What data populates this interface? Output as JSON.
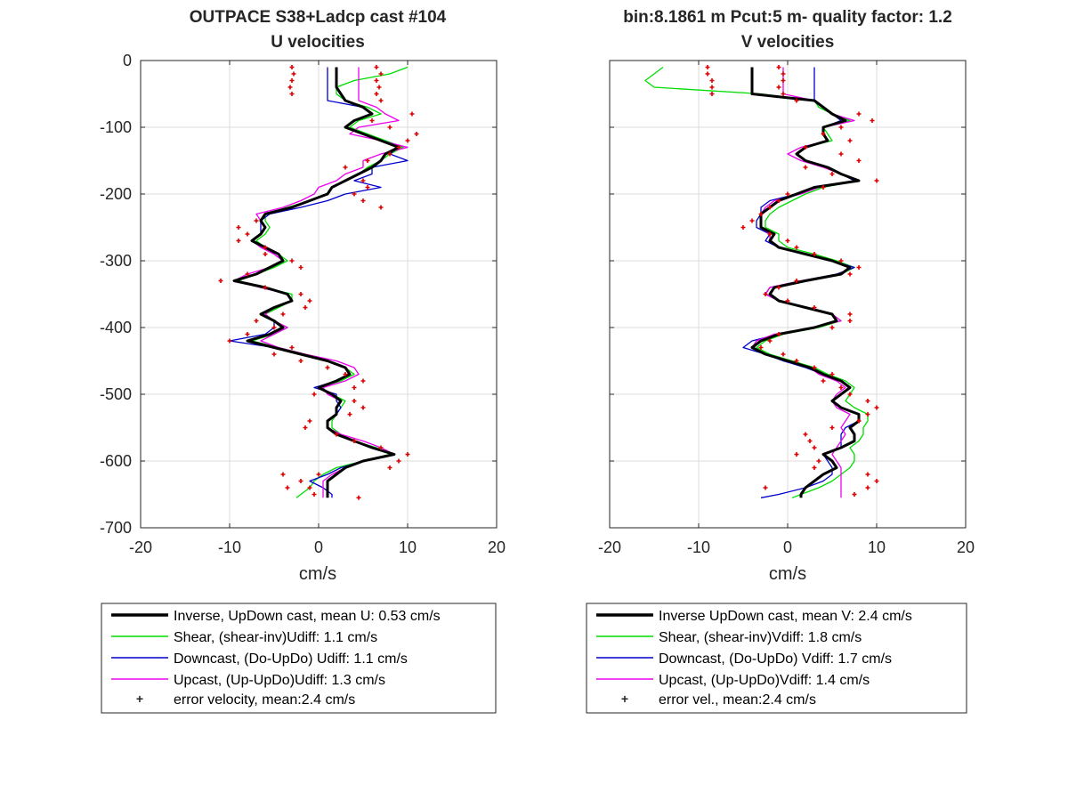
{
  "figure": {
    "panels": [
      {
        "title_line1": "OUTPACE S38+Ladcp cast #104",
        "title_line2": "U velocities",
        "xlabel": "cm/s",
        "legend": [
          "Inverse, UpDown cast, mean U:  0.53 cm/s",
          "Shear, (shear-inv)Udiff:  1.1 cm/s",
          "Downcast, (Do-UpDo) Udiff:  1.1 cm/s",
          "Upcast, (Up-UpDo)Udiff:  1.3 cm/s",
          "error velocity, mean:2.4 cm/s"
        ]
      },
      {
        "title_line1": "bin:8.1861 m  Pcut:5 m- quality factor:  1.2",
        "title_line2": "V velocities",
        "xlabel": "cm/s",
        "legend": [
          "Inverse UpDown cast, mean V:  2.4 cm/s",
          "Shear, (shear-inv)Vdiff:  1.8 cm/s",
          "Downcast, (Do-UpDo) Vdiff:  1.7 cm/s",
          "Upcast, (Up-UpDo)Vdiff:  1.4 cm/s",
          "error vel., mean:2.4 cm/s"
        ]
      }
    ]
  },
  "colors": {
    "inverse": "#000000",
    "shear": "#00dd00",
    "downcast": "#0000cc",
    "upcast": "#ee00ee",
    "error": "#dd0000",
    "grid": "#dcdcdc",
    "axis": "#262626"
  },
  "chart_data": [
    {
      "type": "line",
      "orientation": "profile",
      "xlim": [
        -20,
        20
      ],
      "ylim": [
        -700,
        0
      ],
      "xticks": [
        "-20",
        "-10",
        "0",
        "10",
        "20"
      ],
      "yticks": [
        "0",
        "-100",
        "-200",
        "-300",
        "-400",
        "-500",
        "-600",
        "-700"
      ],
      "xlabel": "cm/s",
      "grid": true,
      "legend_position": "below",
      "depth": [
        -10,
        -20,
        -30,
        -40,
        -50,
        -60,
        -70,
        -80,
        -90,
        -100,
        -110,
        -120,
        -130,
        -140,
        -150,
        -160,
        -170,
        -180,
        -190,
        -200,
        -210,
        -220,
        -230,
        -240,
        -250,
        -260,
        -270,
        -280,
        -290,
        -300,
        -310,
        -320,
        -330,
        -340,
        -350,
        -360,
        -370,
        -380,
        -390,
        -400,
        -410,
        -420,
        -430,
        -440,
        -450,
        -460,
        -470,
        -480,
        -490,
        -500,
        -510,
        -520,
        -530,
        -540,
        -550,
        -560,
        -570,
        -580,
        -590,
        -600,
        -610,
        -620,
        -630,
        -640,
        -650,
        -655
      ],
      "series": [
        {
          "name": "Inverse, UpDown cast, mean U:  0.53 cm/s",
          "key": "inverse",
          "values": [
            2,
            2,
            2,
            2,
            2.5,
            3,
            5,
            6,
            4,
            3,
            5,
            7,
            9,
            7.5,
            7,
            6,
            4.5,
            3,
            1.5,
            1,
            -1,
            -3,
            -6,
            -6.5,
            -6,
            -6.5,
            -7.5,
            -6,
            -4.5,
            -4,
            -5.5,
            -7,
            -9.5,
            -6,
            -3.5,
            -3,
            -5,
            -6.5,
            -5,
            -4,
            -5.5,
            -8,
            -5,
            -2,
            1,
            3,
            3.5,
            2,
            0,
            1.5,
            2.5,
            2,
            2,
            1,
            1,
            2,
            4,
            6,
            8.5,
            5,
            3,
            2,
            1,
            1,
            1,
            1
          ]
        },
        {
          "name": "Shear, (shear-inv)Udiff:  1.1 cm/s",
          "key": "shear",
          "values": [
            10,
            8,
            4,
            2,
            2,
            3,
            5.5,
            7,
            4.5,
            3.5,
            5.5,
            7.5,
            9.5,
            8,
            7,
            5.5,
            4.5,
            3,
            1.5,
            1,
            -1,
            -3.5,
            -6,
            -6,
            -5.5,
            -6,
            -7,
            -6,
            -4.5,
            -3.5,
            -5,
            -7,
            -9,
            -6,
            -3,
            -3,
            -4.5,
            -6,
            -5,
            -3.5,
            -5,
            -7.5,
            -4.5,
            -1.5,
            1,
            3,
            4,
            2.5,
            0,
            1.5,
            3,
            2.5,
            2,
            1.5,
            1.5,
            2.5,
            4,
            6.5,
            8,
            5,
            2,
            0.5,
            -0.5,
            -1,
            -2,
            -2.5
          ]
        },
        {
          "name": "Downcast, (Do-UpDo) Udiff:  1.1 cm/s",
          "key": "downcast",
          "values": [
            1,
            1,
            1,
            1,
            1,
            1,
            5,
            6,
            4,
            3,
            5,
            7,
            9,
            8,
            10,
            6,
            6,
            4,
            7,
            3,
            1,
            -2,
            -5.5,
            -6.5,
            -6.5,
            -6.5,
            -7.5,
            -6,
            -5,
            -4,
            -5.5,
            -7,
            -9.5,
            -6.5,
            -3.5,
            -3,
            -5,
            -6.5,
            -5,
            -5,
            -6,
            -10,
            -5,
            -2,
            1,
            3,
            3.5,
            2,
            -0.5,
            2,
            2,
            2.5,
            2,
            1,
            1,
            2,
            4,
            6,
            8.5,
            5,
            2.5,
            1,
            -1,
            0.5,
            1.5,
            1.5
          ]
        },
        {
          "name": "Upcast, (Up-UpDo)Udiff:  1.3 cm/s",
          "key": "upcast",
          "values": [
            4.5,
            4.5,
            4.5,
            4.5,
            4.5,
            4.5,
            6.5,
            7.5,
            9,
            4.5,
            3.5,
            7,
            10,
            7,
            5,
            5,
            3,
            2,
            0,
            -0.5,
            -2,
            -4,
            -7,
            -6.5,
            -6,
            -6.5,
            -7.5,
            -6.5,
            -5,
            -4,
            -5.5,
            -8,
            -9.5,
            -6.5,
            -3.5,
            -3,
            -5,
            -6,
            -5,
            -3.5,
            -5,
            -6.5,
            -4.5,
            -1.5,
            2,
            4,
            4.5,
            3,
            0.5,
            1,
            2.5,
            2,
            2,
            1,
            1,
            2.5,
            5,
            7,
            8.5,
            5,
            3,
            1.5,
            0.5,
            0.5,
            0.5,
            0.5
          ]
        },
        {
          "name": "error velocity, mean:2.4 cm/s",
          "key": "error",
          "style": "markers",
          "depth": [
            -10,
            -20,
            -30,
            -40,
            -50,
            -10,
            -20,
            -30,
            -40,
            -50,
            -60,
            -80,
            -90,
            -100,
            -110,
            -120,
            -130,
            -140,
            -150,
            -160,
            -180,
            -190,
            -200,
            -210,
            -220,
            -240,
            -250,
            -260,
            -270,
            -280,
            -290,
            -300,
            -310,
            -320,
            -330,
            -340,
            -350,
            -360,
            -370,
            -380,
            -390,
            -400,
            -410,
            -420,
            -430,
            -440,
            -450,
            -460,
            -470,
            -480,
            -490,
            -500,
            -510,
            -520,
            -530,
            -540,
            -550,
            -560,
            -570,
            -580,
            -590,
            -600,
            -610,
            -620,
            -630,
            -640,
            -650,
            -620,
            -640,
            -655
          ],
          "values": [
            -3,
            -2.8,
            -3,
            -3.2,
            -3,
            6.5,
            7,
            6.5,
            6.8,
            6.5,
            7,
            10.5,
            6,
            8,
            11,
            10,
            9,
            8,
            5.5,
            3,
            5,
            5.5,
            4,
            5,
            7,
            -7,
            -9,
            -8,
            -9,
            -6,
            -6,
            -3,
            -2,
            -8,
            -11,
            -6,
            -2,
            -1,
            -1.5,
            -4,
            -7,
            -5,
            -8,
            -10,
            -3,
            -5,
            -2,
            1,
            3,
            5,
            4,
            -0.5,
            4,
            5,
            3.5,
            -1,
            -1.5,
            2,
            4,
            7,
            10,
            9,
            8,
            0,
            -2,
            -1,
            -0.5,
            -4,
            -3.5,
            4.5
          ]
        }
      ]
    },
    {
      "type": "line",
      "orientation": "profile",
      "xlim": [
        -20,
        20
      ],
      "ylim": [
        -700,
        0
      ],
      "xticks": [
        "-20",
        "-10",
        "0",
        "10",
        "20"
      ],
      "yticks": [],
      "xlabel": "cm/s",
      "grid": true,
      "legend_position": "below",
      "depth": [
        -10,
        -20,
        -30,
        -40,
        -50,
        -60,
        -70,
        -80,
        -90,
        -100,
        -110,
        -120,
        -130,
        -140,
        -150,
        -160,
        -170,
        -180,
        -190,
        -200,
        -210,
        -220,
        -230,
        -240,
        -250,
        -260,
        -270,
        -280,
        -290,
        -300,
        -310,
        -320,
        -330,
        -340,
        -350,
        -360,
        -370,
        -380,
        -390,
        -400,
        -410,
        -420,
        -430,
        -440,
        -450,
        -460,
        -470,
        -480,
        -490,
        -500,
        -510,
        -520,
        -530,
        -540,
        -550,
        -560,
        -570,
        -580,
        -590,
        -600,
        -610,
        -620,
        -630,
        -640,
        -650,
        -655
      ],
      "series": [
        {
          "name": "Inverse UpDown cast, mean V:  2.4 cm/s",
          "key": "inverse",
          "values": [
            -4,
            -4,
            -4,
            -4,
            -4,
            3,
            4,
            5,
            6.5,
            4,
            4,
            4.5,
            2,
            1,
            2,
            4.5,
            6,
            8,
            3,
            1,
            -1,
            -2,
            -3,
            -3,
            -3,
            -1.5,
            -2,
            -1,
            2,
            5,
            7,
            6,
            2,
            -1.5,
            -2,
            -1,
            2,
            5,
            5.5,
            3,
            -1,
            -3,
            -4,
            -2.5,
            0,
            2.5,
            4,
            6,
            7,
            6,
            5,
            6,
            8,
            8,
            7,
            7.5,
            7.5,
            6,
            4,
            5,
            5.5,
            4,
            3,
            2,
            1.5,
            1.5
          ]
        },
        {
          "name": "Shear, (shear-inv)Vdiff:  1.8 cm/s",
          "key": "shear",
          "values": [
            -14,
            -15,
            -16,
            -15,
            -3,
            3,
            3.5,
            5,
            7,
            4,
            4.5,
            5,
            2,
            1,
            2,
            4.5,
            6,
            8,
            4,
            2,
            0.5,
            -1,
            -2,
            -2.5,
            -2.5,
            -1,
            -1,
            0,
            3,
            5.5,
            7.5,
            6,
            1.5,
            -1.5,
            -2,
            -1,
            2,
            5,
            6,
            3.5,
            -0.5,
            -2.5,
            -3.5,
            -2,
            0.5,
            3,
            4.5,
            6.5,
            7.5,
            7,
            6.5,
            7.5,
            9,
            9,
            8.5,
            8.5,
            8,
            7,
            7.5,
            7.5,
            7,
            6,
            5,
            3.5,
            1.5,
            0.5
          ]
        },
        {
          "name": "Downcast, (Do-UpDo) Vdiff:  1.7 cm/s",
          "key": "downcast",
          "values": [
            3,
            3,
            3,
            3,
            3,
            3,
            4,
            5,
            6,
            4,
            4,
            4.5,
            2,
            1,
            2,
            4.5,
            6,
            7.5,
            3,
            1,
            -2,
            -3,
            -3,
            -3.5,
            -3.5,
            -2,
            -2.5,
            -1,
            2,
            5,
            7.5,
            5.5,
            1.5,
            -2,
            -2.5,
            -1,
            2,
            5,
            5.5,
            3,
            -1,
            -4,
            -5,
            -2.5,
            -0.5,
            2,
            4,
            6,
            7,
            6,
            5,
            6,
            8,
            8,
            6.5,
            6,
            6,
            6,
            4,
            4.5,
            5,
            5,
            4,
            2,
            -1,
            -3
          ]
        },
        {
          "name": "Upcast, (Up-UpDo)Vdiff:  1.4 cm/s",
          "key": "upcast",
          "values": [
            -0.5,
            -0.5,
            -0.5,
            -0.5,
            -0.5,
            3,
            4,
            5,
            7.5,
            4,
            4,
            4.5,
            1.5,
            0,
            1.5,
            4,
            6,
            8,
            3.5,
            1.5,
            -1.5,
            -2.5,
            -3,
            -3,
            -3,
            -2,
            -2,
            -1,
            2,
            5,
            7,
            6,
            1.5,
            -2,
            -2.5,
            -1,
            2,
            5,
            6,
            3,
            -1.5,
            -3.5,
            -4,
            -2.5,
            0,
            2.5,
            3.5,
            5.5,
            6.5,
            5.5,
            5,
            5.5,
            7,
            6.5,
            6,
            6.5,
            6,
            5.5,
            5,
            5.5,
            6,
            6,
            6,
            6,
            6,
            6
          ]
        },
        {
          "name": "error vel., mean:2.4 cm/s",
          "key": "error",
          "style": "markers",
          "depth": [
            -10,
            -20,
            -30,
            -40,
            -50,
            -10,
            -20,
            -30,
            -40,
            -50,
            -60,
            -80,
            -90,
            -100,
            -110,
            -120,
            -130,
            -140,
            -150,
            -160,
            -170,
            -180,
            -190,
            -200,
            -210,
            -220,
            -230,
            -240,
            -250,
            -260,
            -270,
            -280,
            -290,
            -300,
            -310,
            -320,
            -330,
            -340,
            -350,
            -360,
            -370,
            -380,
            -390,
            -400,
            -410,
            -420,
            -430,
            -440,
            -450,
            -460,
            -470,
            -480,
            -490,
            -500,
            -510,
            -520,
            -530,
            -540,
            -550,
            -560,
            -570,
            -580,
            -590,
            -600,
            -610,
            -620,
            -630,
            -640,
            -650,
            -640
          ],
          "values": [
            -9,
            -9,
            -8.5,
            -8.5,
            -8.5,
            -1,
            -0.5,
            -0.5,
            -1,
            -0.5,
            1,
            8,
            9.5,
            6,
            4,
            7,
            2,
            6,
            8,
            2,
            5,
            10,
            4,
            0,
            -1,
            -2,
            -3,
            -4,
            -5,
            -2,
            0,
            1,
            3,
            6,
            8,
            7,
            1,
            -1,
            -2.5,
            0,
            3,
            7,
            7,
            5,
            -1,
            -2,
            -3,
            -0.5,
            1,
            3,
            5,
            4,
            6,
            7,
            9,
            10,
            9,
            8,
            5,
            2,
            2.5,
            3,
            1,
            3.5,
            3,
            9,
            10,
            9,
            7.5,
            -2.5
          ]
        }
      ]
    }
  ]
}
